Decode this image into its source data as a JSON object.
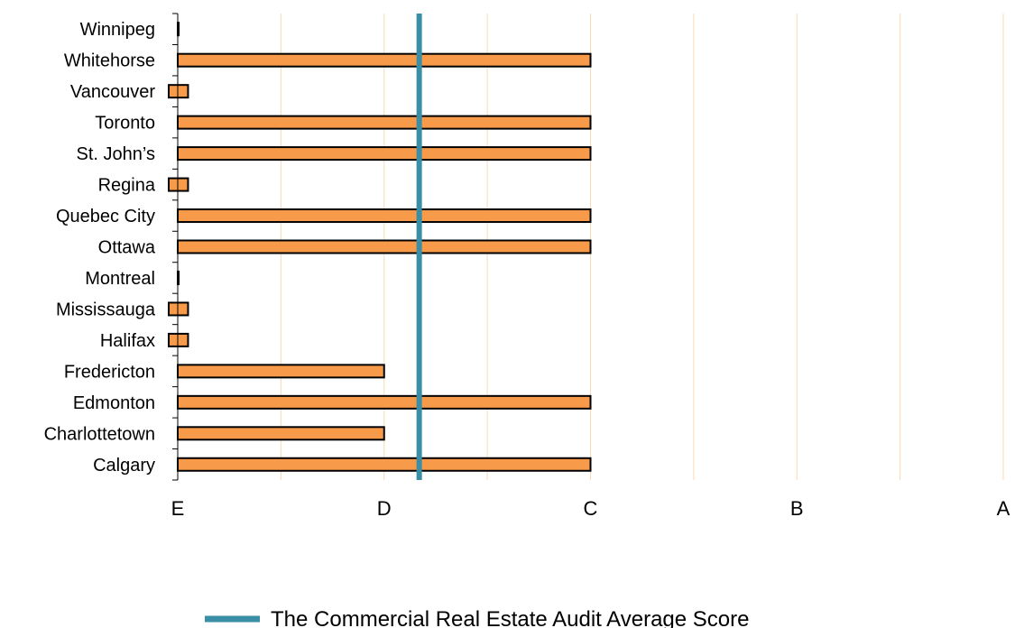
{
  "chart_data": {
    "type": "bar",
    "orientation": "horizontal",
    "categories": [
      "Winnipeg",
      "Whitehorse",
      "Vancouver",
      "Toronto",
      "St. John’s",
      "Regina",
      "Quebec City",
      "Ottawa",
      "Montreal",
      "Mississauga",
      "Halifax",
      "Fredericton",
      "Edmonton",
      "Charlottetown",
      "Calgary"
    ],
    "values": [
      0,
      2,
      0.05,
      2,
      2,
      0.05,
      2,
      2,
      0,
      0.05,
      0.05,
      1,
      2,
      1,
      2
    ],
    "xlim": [
      0,
      4
    ],
    "x_ticks": [
      {
        "value": 0,
        "label": "E"
      },
      {
        "value": 1,
        "label": "D"
      },
      {
        "value": 2,
        "label": "C"
      },
      {
        "value": 3,
        "label": "B"
      },
      {
        "value": 4,
        "label": "A"
      }
    ],
    "minor_gridlines": [
      0.5,
      1.0,
      1.5,
      2.0,
      2.5,
      3.0,
      3.5,
      4.0
    ],
    "reference_line": {
      "value": 1.17,
      "name": "The Commercial Real Estate Audit Average Score",
      "color": "#3a8ea6"
    },
    "bar_color": "#f79a4a",
    "bar_edge_color": "#000000",
    "grid_color": "#fbd9b5",
    "legend_position": "bottom"
  }
}
